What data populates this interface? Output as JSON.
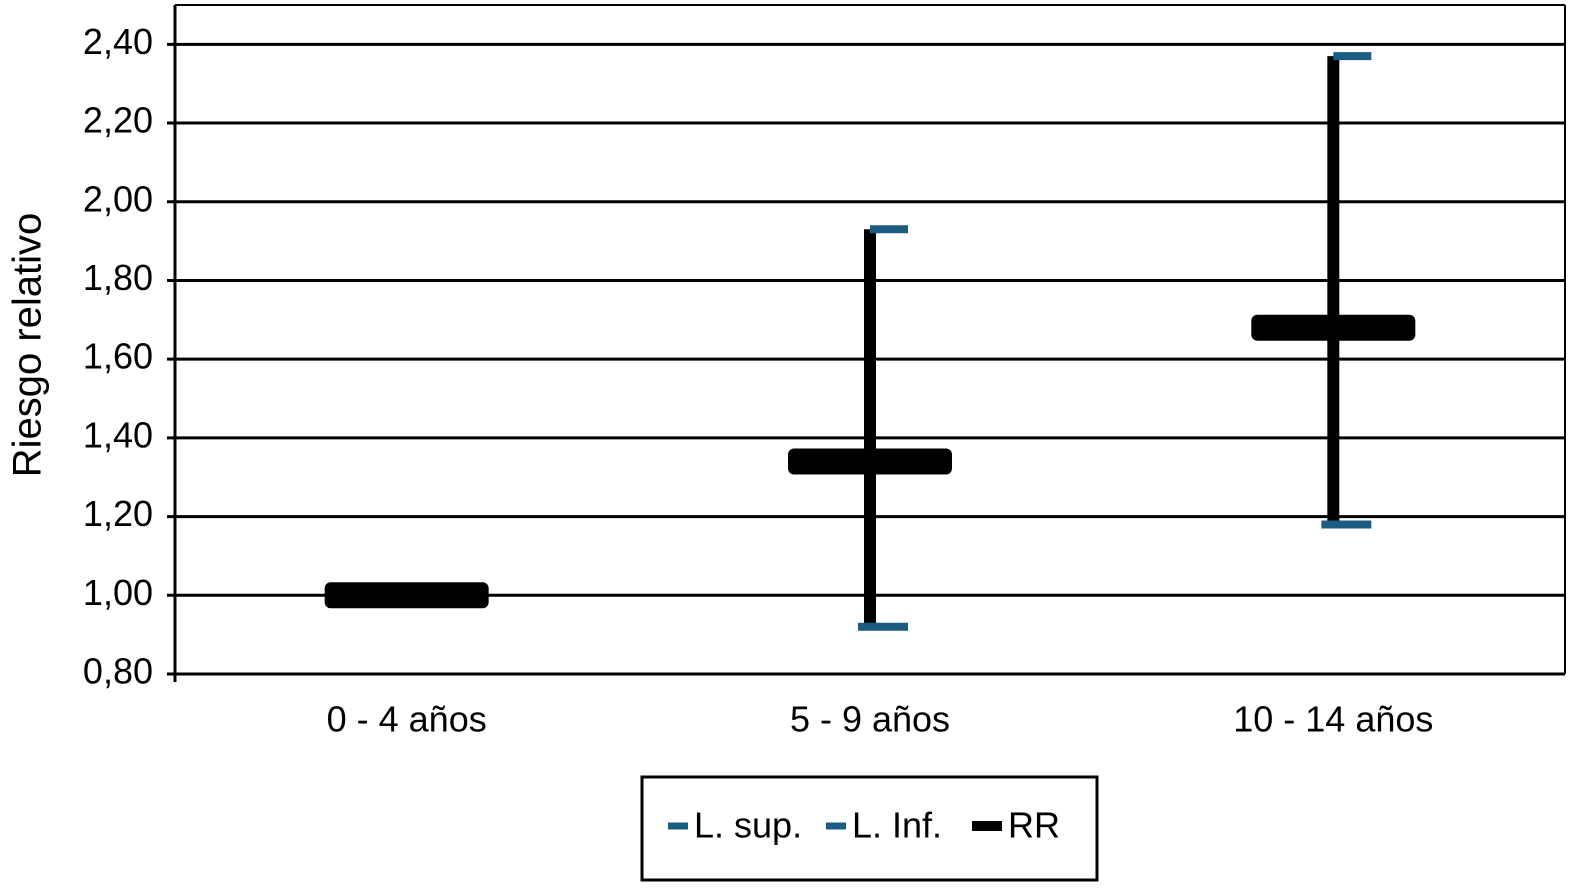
{
  "chart_data": {
    "type": "hilo",
    "y_label": "Riesgo relativo",
    "categories": [
      "0 - 4 años",
      "5 - 9 años",
      "10 - 14 años"
    ],
    "series": [
      {
        "name": "L. sup.",
        "color": "#1b5c83",
        "values": [
          1.0,
          1.93,
          2.37
        ]
      },
      {
        "name": "L. Inf.",
        "color": "#1b5c83",
        "values": [
          1.0,
          0.92,
          1.18
        ]
      },
      {
        "name": "RR",
        "color": "#000000",
        "values": [
          1.0,
          1.34,
          1.68
        ]
      }
    ],
    "ylim": [
      0.8,
      2.5
    ],
    "yticks": [
      {
        "value": 0.8,
        "label": "0,80"
      },
      {
        "value": 1.0,
        "label": "1,00"
      },
      {
        "value": 1.2,
        "label": "1,20"
      },
      {
        "value": 1.4,
        "label": "1,40"
      },
      {
        "value": 1.6,
        "label": "1,60"
      },
      {
        "value": 1.8,
        "label": "1,80"
      },
      {
        "value": 2.0,
        "label": "2,00"
      },
      {
        "value": 2.2,
        "label": "2,20"
      },
      {
        "value": 2.4,
        "label": "2,40"
      }
    ],
    "grid": true
  }
}
